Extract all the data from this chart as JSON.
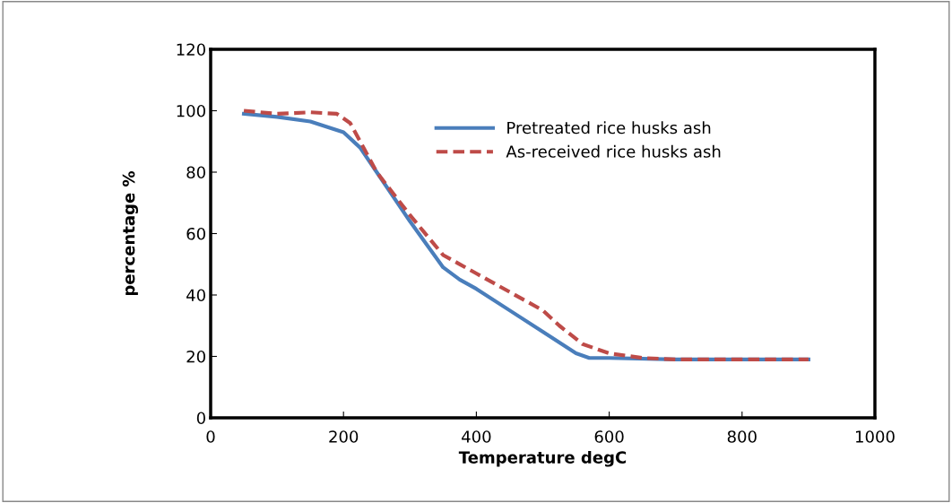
{
  "chart_data": {
    "type": "line",
    "xlabel": "Temperature degC",
    "ylabel": "percentage %",
    "xlim": [
      0,
      1000
    ],
    "xticks": [
      0,
      200,
      400,
      600,
      800,
      1000
    ],
    "ylim": [
      0,
      120
    ],
    "yticks": [
      0,
      20,
      40,
      60,
      80,
      100,
      120
    ],
    "grid": false,
    "legend": "top right",
    "marker": "none",
    "series": [
      {
        "name": "Pretreated rice husks ash",
        "color": "#4a7ebb",
        "line_style": "solid",
        "x": [
          50,
          100,
          150,
          200,
          225,
          250,
          300,
          350,
          375,
          400,
          450,
          500,
          550,
          570,
          600,
          700,
          800,
          900
        ],
        "values": [
          99,
          98,
          96.5,
          93,
          88,
          80,
          64,
          49,
          45,
          42,
          35,
          28,
          21,
          19.5,
          19.5,
          19,
          19,
          19
        ]
      },
      {
        "name": "As-received rice husks ash",
        "color": "#be4b48",
        "line_style": "dashed",
        "x": [
          50,
          100,
          150,
          190,
          210,
          230,
          250,
          300,
          350,
          400,
          450,
          500,
          525,
          560,
          600,
          650,
          700,
          800,
          900
        ],
        "values": [
          100,
          99,
          99.5,
          99,
          96,
          88,
          80,
          66,
          53,
          47,
          41,
          35,
          30,
          24,
          21,
          19.5,
          19,
          19,
          19
        ]
      }
    ]
  }
}
